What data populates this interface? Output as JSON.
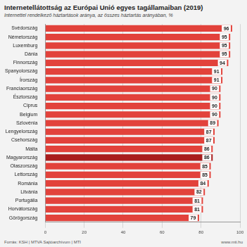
{
  "chart_data": {
    "type": "bar",
    "title": "Internetellátottság az Európai Unió egyes tagállamaiban (2019)",
    "subtitle": "Internettel rendelkező háztartások aránya, az összes háztartás arányában, %",
    "source": "Forrás: KSH | MTVA Sajtóarchívum | MTI",
    "website": "www.mti.hu",
    "orientation": "horizontal",
    "categories": [
      "Svédország",
      "Németország",
      "Luxemburg",
      "Dánia",
      "Finnország",
      "Spanyolország",
      "Írország",
      "Franciaország",
      "Észtország",
      "Ciprus",
      "Belgium",
      "Szlovénia",
      "Lengyelország",
      "Csehország",
      "Málta",
      "Magyarország",
      "Olaszország",
      "Lettország",
      "Románia",
      "Litvánia",
      "Portugália",
      "Horvátország",
      "Görögország"
    ],
    "values": [
      96,
      95,
      95,
      95,
      94,
      91,
      91,
      90,
      90,
      90,
      90,
      89,
      87,
      87,
      86,
      86,
      85,
      85,
      84,
      82,
      81,
      81,
      79
    ],
    "colors": [
      "#e2423b",
      "#e2423b",
      "#e2423b",
      "#e2423b",
      "#e2423b",
      "#e2423b",
      "#e2423b",
      "#e2423b",
      "#e2423b",
      "#e2423b",
      "#e2423b",
      "#e2423b",
      "#e2423b",
      "#e2423b",
      "#e2423b",
      "#a91d1d",
      "#e2423b",
      "#e2423b",
      "#e2423b",
      "#e2423b",
      "#e2423b",
      "#e2423b",
      "#e2423b"
    ],
    "xlim": [
      0,
      100
    ],
    "xticks": [
      0,
      20,
      40,
      60,
      80,
      100
    ],
    "grid": true,
    "data_labels": true
  }
}
